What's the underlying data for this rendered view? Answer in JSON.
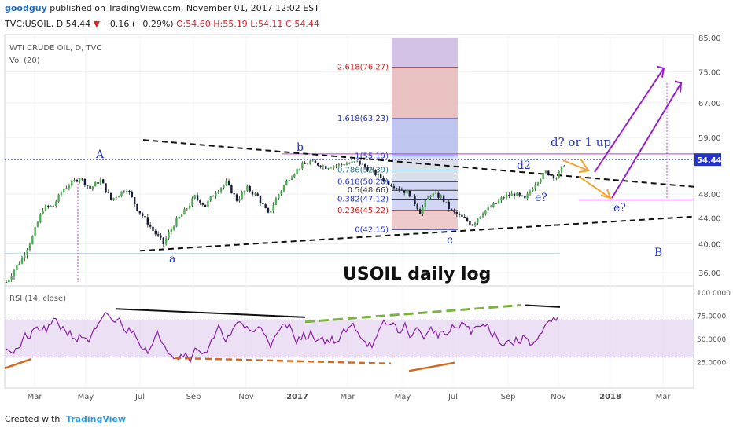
{
  "header": {
    "user": "goodguy",
    "published": "published on TradingView.com, November 01, 2017 12:02 EST",
    "symbol_line_a": "TVC:USOIL, D  54.44",
    "change_arrow": "▼",
    "change": "−0.16 (−0.29%)",
    "ohlc": "O:54.60 H:55.19 L:54.11 C:54.44"
  },
  "legend": {
    "name": "WTI CRUDE OIL, D, TVC",
    "vol": "Vol (20)",
    "rsi": "RSI (14, close)"
  },
  "footer": {
    "created": "Created with",
    "brand": "TradingView"
  },
  "chart_data": {
    "type": "candlestick",
    "title": "USOIL daily log",
    "scale": "log",
    "ylim": [
      34.5,
      85
    ],
    "y_ticks": [
      "85.00",
      "75.00",
      "67.00",
      "59.00",
      "54.44",
      "48.00",
      "44.00",
      "40.00",
      "36.00"
    ],
    "last_price": 54.44,
    "x_ticks": [
      "Mar",
      "May",
      "Jul",
      "Sep",
      "Nov",
      "2017",
      "Mar",
      "May",
      "Jul",
      "Sep",
      "Nov",
      "2018",
      "Mar"
    ],
    "price_path": [
      [
        0,
        34.8
      ],
      [
        6,
        38
      ],
      [
        10,
        41
      ],
      [
        14,
        45.5
      ],
      [
        18,
        46
      ],
      [
        22,
        49
      ],
      [
        28,
        51
      ],
      [
        32,
        49
      ],
      [
        36,
        50.5
      ],
      [
        40,
        47
      ],
      [
        46,
        49
      ],
      [
        50,
        45.5
      ],
      [
        56,
        42
      ],
      [
        60,
        40
      ],
      [
        64,
        43
      ],
      [
        68,
        45
      ],
      [
        72,
        47.5
      ],
      [
        76,
        46
      ],
      [
        80,
        48.5
      ],
      [
        84,
        50
      ],
      [
        88,
        47
      ],
      [
        92,
        49
      ],
      [
        96,
        47.5
      ],
      [
        100,
        44.5
      ],
      [
        104,
        48
      ],
      [
        108,
        51
      ],
      [
        112,
        53
      ],
      [
        116,
        54
      ],
      [
        122,
        53
      ],
      [
        128,
        53.5
      ],
      [
        134,
        54
      ],
      [
        140,
        52
      ],
      [
        146,
        50
      ],
      [
        150,
        49
      ],
      [
        154,
        48
      ],
      [
        158,
        45
      ],
      [
        162,
        48
      ],
      [
        166,
        47.5
      ],
      [
        170,
        45
      ],
      [
        174,
        44
      ],
      [
        178,
        43
      ],
      [
        182,
        45
      ],
      [
        186,
        46
      ],
      [
        190,
        47.5
      ],
      [
        194,
        48
      ],
      [
        198,
        47
      ],
      [
        202,
        50
      ],
      [
        206,
        52
      ],
      [
        210,
        51
      ],
      [
        214,
        54.44
      ]
    ],
    "fib_levels": [
      {
        "label": "0(42.15)",
        "value": 42.15,
        "color": "#2233cc"
      },
      {
        "label": "0.236(45.22)",
        "value": 45.22,
        "color": "#cc2222"
      },
      {
        "label": "0.382(47.12)",
        "value": 47.12,
        "color": "#2233cc"
      },
      {
        "label": "0.5(48.66)",
        "value": 48.66,
        "color": "#333333"
      },
      {
        "label": "0.618(50.20)",
        "value": 50.2,
        "color": "#2233cc"
      },
      {
        "label": "0.786(52.39)",
        "value": 52.39,
        "color": "#2a7a9a"
      },
      {
        "label": "1(55.19)",
        "value": 55.19,
        "color": "#2233cc"
      },
      {
        "label": "1.618(63.23)",
        "value": 63.23,
        "color": "#2233cc"
      },
      {
        "label": "2.618(76.27)",
        "value": 76.27,
        "color": "#cc2222"
      }
    ],
    "wave_labels": [
      "A",
      "b",
      "a",
      "c",
      "d2",
      "e?",
      "d? or 1 up",
      "e?",
      "B"
    ],
    "rsi": {
      "ylim": [
        0,
        100
      ],
      "y_ticks": [
        "100.0000",
        "75.0000",
        "50.0000",
        "25.0000"
      ],
      "overbought": 70,
      "oversold": 30
    }
  }
}
